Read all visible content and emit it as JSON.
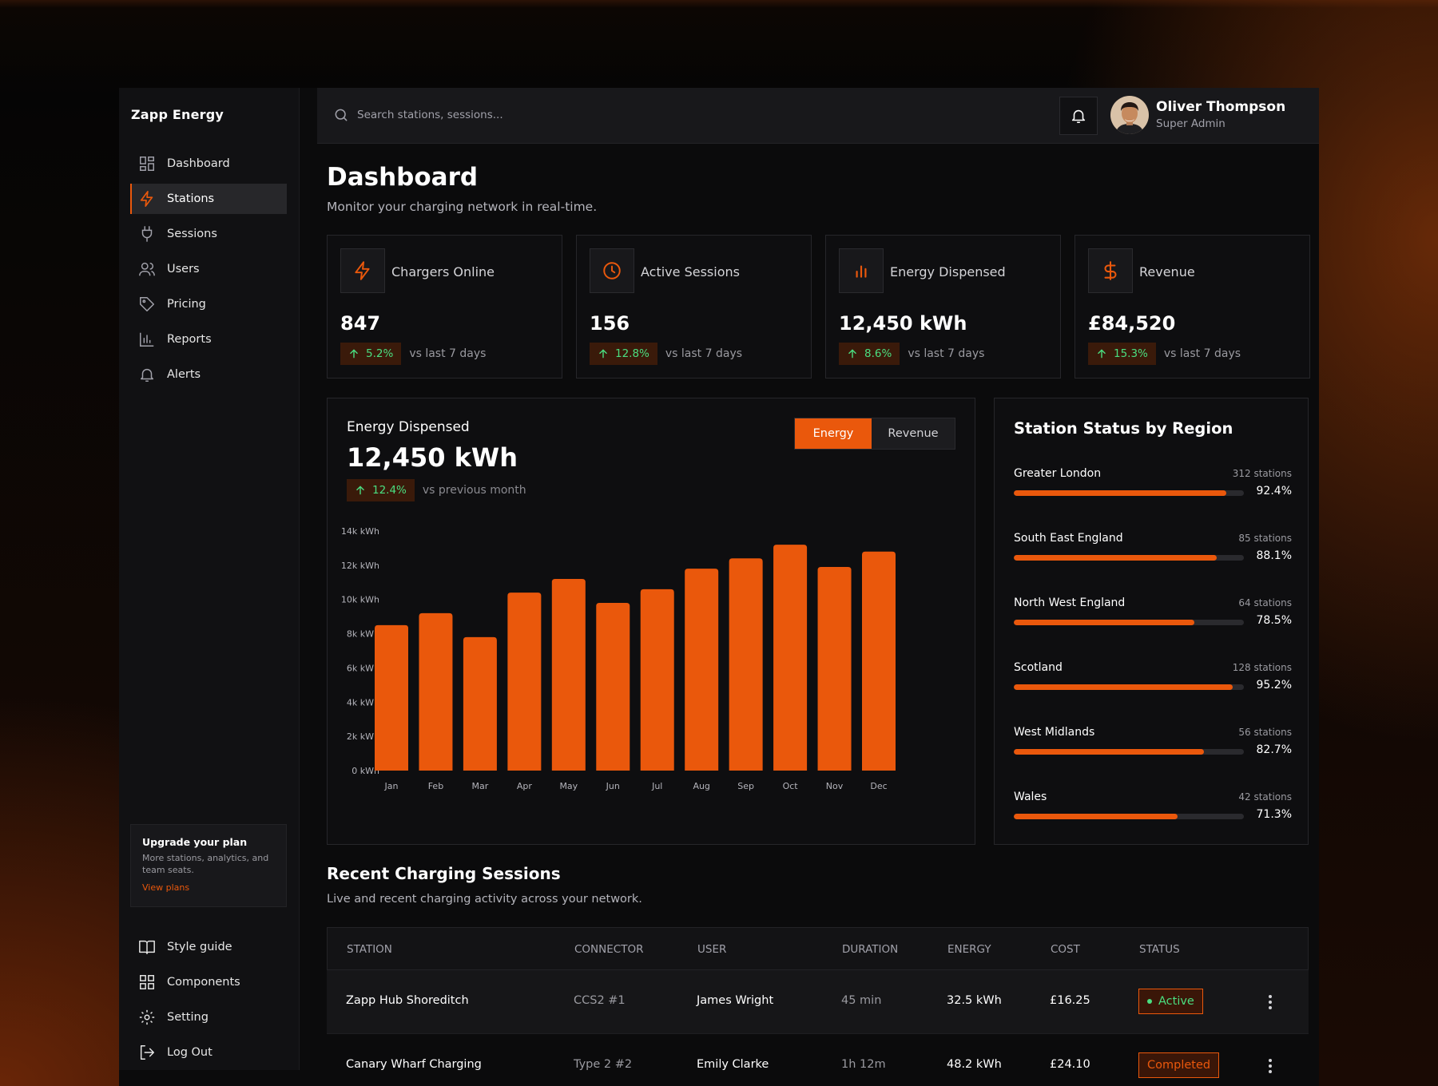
{
  "brand": "Zapp Energy",
  "nav": [
    {
      "label": "Dashboard",
      "icon": "dashboard-icon"
    },
    {
      "label": "Stations",
      "icon": "bolt-icon",
      "active": true
    },
    {
      "label": "Sessions",
      "icon": "plug-icon"
    },
    {
      "label": "Users",
      "icon": "users-icon"
    },
    {
      "label": "Pricing",
      "icon": "tag-icon"
    },
    {
      "label": "Reports",
      "icon": "bar-chart-icon"
    },
    {
      "label": "Alerts",
      "icon": "bell-icon"
    }
  ],
  "upgrade": {
    "title": "Upgrade your plan",
    "description": "More stations, analytics, and team seats.",
    "link": "View plans"
  },
  "nav_bottom": [
    {
      "label": "Style guide",
      "icon": "book-icon"
    },
    {
      "label": "Components",
      "icon": "grid-icon"
    },
    {
      "label": "Setting",
      "icon": "gear-icon"
    },
    {
      "label": "Log Out",
      "icon": "logout-icon"
    }
  ],
  "search": {
    "placeholder": "Search stations, sessions..."
  },
  "user": {
    "name": "Oliver Thompson",
    "role": "Super Admin"
  },
  "page": {
    "title": "Dashboard",
    "subtitle": "Monitor your charging network in real-time."
  },
  "stats": [
    {
      "label": "Chargers Online",
      "value": "847",
      "trend": "5.2%",
      "vs": "vs last 7 days",
      "icon": "bolt-icon"
    },
    {
      "label": "Active Sessions",
      "value": "156",
      "trend": "12.8%",
      "vs": "vs last 7 days",
      "icon": "clock-icon"
    },
    {
      "label": "Energy Dispensed",
      "value": "12,450 kWh",
      "trend": "8.6%",
      "vs": "vs last 7 days",
      "icon": "bars-icon"
    },
    {
      "label": "Revenue",
      "value": "£84,520",
      "trend": "15.3%",
      "vs": "vs last 7 days",
      "icon": "dollar-icon"
    }
  ],
  "energy_panel": {
    "title": "Energy Dispensed",
    "value": "12,450 kWh",
    "trend": "12.4%",
    "vs": "vs previous month",
    "toggle": {
      "energy": "Energy",
      "revenue": "Revenue"
    }
  },
  "chart_data": {
    "type": "bar",
    "categories": [
      "Jan",
      "Feb",
      "Mar",
      "Apr",
      "May",
      "Jun",
      "Jul",
      "Aug",
      "Sep",
      "Oct",
      "Nov",
      "Dec"
    ],
    "values": [
      8500,
      9200,
      7800,
      10400,
      11200,
      9800,
      10600,
      11800,
      12400,
      13200,
      11900,
      12800
    ],
    "y_ticks": [
      "0 kWh",
      "2k kWh",
      "4k kWh",
      "6k kWh",
      "8k kWh",
      "10k kWh",
      "12k kWh",
      "14k kWh"
    ],
    "ylim": [
      0,
      14000
    ],
    "color": "#ea580c",
    "grid": false,
    "title": "",
    "xlabel": "",
    "ylabel": ""
  },
  "region_panel": {
    "title": "Station Status by Region",
    "regions": [
      {
        "name": "Greater London",
        "stations": "312 stations",
        "percent": "92.4%",
        "value": 92.4
      },
      {
        "name": "South East England",
        "stations": "85 stations",
        "percent": "88.1%",
        "value": 88.1
      },
      {
        "name": "North West England",
        "stations": "64 stations",
        "percent": "78.5%",
        "value": 78.5
      },
      {
        "name": "Scotland",
        "stations": "128 stations",
        "percent": "95.2%",
        "value": 95.2
      },
      {
        "name": "West Midlands",
        "stations": "56 stations",
        "percent": "82.7%",
        "value": 82.7
      },
      {
        "name": "Wales",
        "stations": "42 stations",
        "percent": "71.3%",
        "value": 71.3
      }
    ]
  },
  "sessions": {
    "title": "Recent Charging Sessions",
    "subtitle": "Live and recent charging activity across your network.",
    "columns": [
      "STATION",
      "CONNECTOR",
      "USER",
      "DURATION",
      "ENERGY",
      "COST",
      "STATUS"
    ],
    "rows": [
      {
        "station": "Zapp Hub Shoreditch",
        "connector": "CCS2 #1",
        "user": "James Wright",
        "duration": "45 min",
        "energy": "32.5 kWh",
        "cost": "£16.25",
        "status": "Active"
      },
      {
        "station": "Canary Wharf Charging",
        "connector": "Type 2 #2",
        "user": "Emily Clarke",
        "duration": "1h 12m",
        "energy": "48.2 kWh",
        "cost": "£24.10",
        "status": "Completed"
      }
    ]
  },
  "colors": {
    "accent": "#ea580c",
    "positive": "#4ade80",
    "background": "#0b0b0c"
  }
}
